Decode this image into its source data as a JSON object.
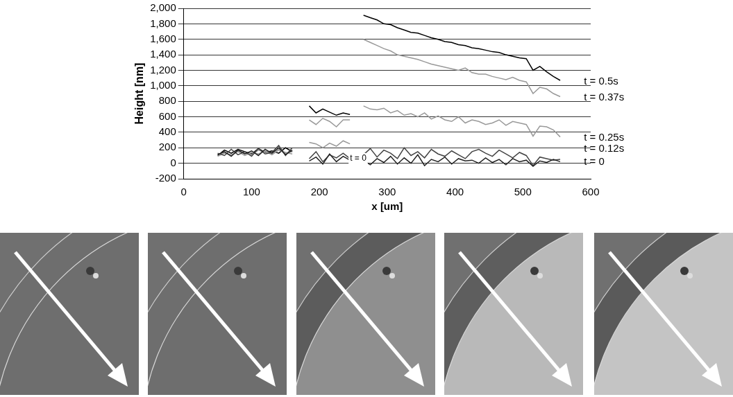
{
  "chart_data": {
    "type": "line",
    "x_label": "x [um]",
    "y_label": "Height [nm]",
    "x": [
      50,
      60,
      70,
      80,
      90,
      100,
      110,
      120,
      130,
      140,
      150,
      160,
      172,
      185,
      195,
      205,
      215,
      225,
      235,
      245,
      255,
      265,
      275,
      285,
      295,
      305,
      315,
      325,
      335,
      345,
      355,
      365,
      375,
      385,
      395,
      405,
      415,
      425,
      435,
      445,
      455,
      465,
      475,
      485,
      495,
      505,
      515,
      525,
      535,
      545,
      555
    ],
    "series": [
      {
        "color": "#222222",
        "values": [
          110,
          150,
          90,
          170,
          120,
          160,
          100,
          180,
          130,
          200,
          110,
          170,
          null,
          30,
          80,
          -10,
          120,
          20,
          90,
          40,
          null,
          40,
          -20,
          60,
          10,
          90,
          -10,
          70,
          0,
          110,
          -30,
          50,
          20,
          80,
          -10,
          60,
          30,
          40,
          0,
          70,
          10,
          50,
          -20,
          60,
          20,
          40,
          -40,
          30,
          10,
          50,
          20
        ]
      },
      {
        "color": "#444444",
        "values": [
          130,
          100,
          180,
          110,
          150,
          90,
          190,
          120,
          140,
          230,
          100,
          200,
          null,
          60,
          150,
          20,
          110,
          70,
          130,
          60,
          null,
          110,
          190,
          80,
          170,
          130,
          60,
          200,
          100,
          150,
          70,
          180,
          120,
          90,
          160,
          110,
          60,
          150,
          180,
          130,
          90,
          170,
          120,
          70,
          140,
          100,
          -30,
          80,
          60,
          40,
          50
        ]
      },
      {
        "color": "#999999",
        "values": [
          120,
          140,
          100,
          160,
          130,
          110,
          170,
          140,
          120,
          180,
          130,
          150,
          null,
          270,
          250,
          200,
          260,
          220,
          290,
          250,
          null,
          740,
          700,
          690,
          710,
          650,
          680,
          620,
          640,
          600,
          650,
          570,
          610,
          560,
          540,
          600,
          520,
          560,
          540,
          500,
          520,
          560,
          490,
          540,
          520,
          500,
          350,
          480,
          470,
          430,
          340
        ]
      },
      {
        "color": "#999999",
        "values": [
          90,
          130,
          110,
          150,
          100,
          140,
          120,
          160,
          110,
          170,
          140,
          120,
          null,
          560,
          500,
          580,
          540,
          470,
          560,
          560,
          null,
          1600,
          1560,
          1520,
          1480,
          1450,
          1400,
          1380,
          1360,
          1340,
          1310,
          1280,
          1260,
          1240,
          1220,
          1200,
          1230,
          1170,
          1150,
          1150,
          1120,
          1100,
          1080,
          1110,
          1070,
          1050,
          900,
          980,
          960,
          900,
          860
        ]
      },
      {
        "color": "#000000",
        "values": [
          100,
          170,
          130,
          180,
          150,
          120,
          190,
          140,
          160,
          130,
          200,
          150,
          null,
          740,
          650,
          700,
          660,
          620,
          650,
          630,
          null,
          1910,
          1880,
          1850,
          1800,
          1790,
          1750,
          1720,
          1690,
          1680,
          1650,
          1620,
          1600,
          1570,
          1560,
          1530,
          1520,
          1490,
          1480,
          1460,
          1440,
          1430,
          1400,
          1380,
          1360,
          1350,
          1200,
          1250,
          1180,
          1120,
          1070
        ]
      }
    ],
    "xlim": [
      0,
      600
    ],
    "xticks": [
      0,
      100,
      200,
      300,
      400,
      500,
      600
    ],
    "ylim": [
      -200,
      2000
    ],
    "yticks": [
      -200,
      0,
      200,
      400,
      600,
      800,
      1000,
      1200,
      1400,
      1600,
      1800,
      2000
    ],
    "grid": "y",
    "annotations": [
      {
        "text": "t = 0.5s",
        "x": 590,
        "y": 1050
      },
      {
        "text": "t = 0.37s",
        "x": 590,
        "y": 850
      },
      {
        "text": "t = 0.25s",
        "x": 590,
        "y": 330
      },
      {
        "text": "t = 0.12s",
        "x": 590,
        "y": 190
      },
      {
        "text": "t = 0",
        "x": 590,
        "y": 20
      },
      {
        "text": "t = 0",
        "x": 245,
        "y": 60
      }
    ]
  }
}
